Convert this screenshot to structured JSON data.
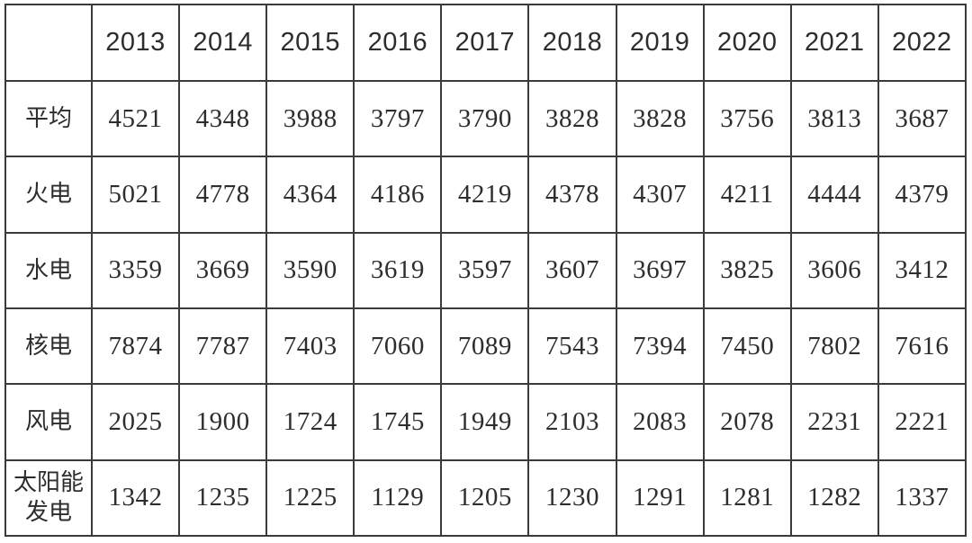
{
  "table": {
    "corner_label": "",
    "columns": [
      "2013",
      "2014",
      "2015",
      "2016",
      "2017",
      "2018",
      "2019",
      "2020",
      "2021",
      "2022"
    ],
    "rows": [
      {
        "label": "平均",
        "values": [
          4521,
          4348,
          3988,
          3797,
          3790,
          3828,
          3828,
          3756,
          3813,
          3687
        ]
      },
      {
        "label": "火电",
        "values": [
          5021,
          4778,
          4364,
          4186,
          4219,
          4378,
          4307,
          4211,
          4444,
          4379
        ]
      },
      {
        "label": "水电",
        "values": [
          3359,
          3669,
          3590,
          3619,
          3597,
          3607,
          3697,
          3825,
          3606,
          3412
        ]
      },
      {
        "label": "核电",
        "values": [
          7874,
          7787,
          7403,
          7060,
          7089,
          7543,
          7394,
          7450,
          7802,
          7616
        ]
      },
      {
        "label": "风电",
        "values": [
          2025,
          1900,
          1724,
          1745,
          1949,
          2103,
          2083,
          2078,
          2231,
          2221
        ]
      },
      {
        "label": "太阳能发电",
        "values": [
          1342,
          1235,
          1225,
          1129,
          1205,
          1230,
          1291,
          1281,
          1282,
          1337
        ]
      }
    ]
  },
  "chart_data": {
    "type": "table",
    "title": "",
    "categories": [
      "2013",
      "2014",
      "2015",
      "2016",
      "2017",
      "2018",
      "2019",
      "2020",
      "2021",
      "2022"
    ],
    "series": [
      {
        "name": "平均",
        "values": [
          4521,
          4348,
          3988,
          3797,
          3790,
          3828,
          3828,
          3756,
          3813,
          3687
        ]
      },
      {
        "name": "火电",
        "values": [
          5021,
          4778,
          4364,
          4186,
          4219,
          4378,
          4307,
          4211,
          4444,
          4379
        ]
      },
      {
        "name": "水电",
        "values": [
          3359,
          3669,
          3590,
          3619,
          3597,
          3607,
          3697,
          3825,
          3606,
          3412
        ]
      },
      {
        "name": "核电",
        "values": [
          7874,
          7787,
          7403,
          7060,
          7089,
          7543,
          7394,
          7450,
          7802,
          7616
        ]
      },
      {
        "name": "风电",
        "values": [
          2025,
          1900,
          1724,
          1745,
          1949,
          2103,
          2083,
          2078,
          2231,
          2221
        ]
      },
      {
        "name": "太阳能发电",
        "values": [
          1342,
          1235,
          1225,
          1129,
          1205,
          1230,
          1291,
          1281,
          1282,
          1337
        ]
      }
    ],
    "layout_hints": {
      "grid": "full-borders",
      "header_row": "years",
      "label_column": "power-type"
    }
  },
  "colors": {
    "border": "#3a3a3a",
    "text": "#2d2d2d",
    "background": "#ffffff"
  }
}
